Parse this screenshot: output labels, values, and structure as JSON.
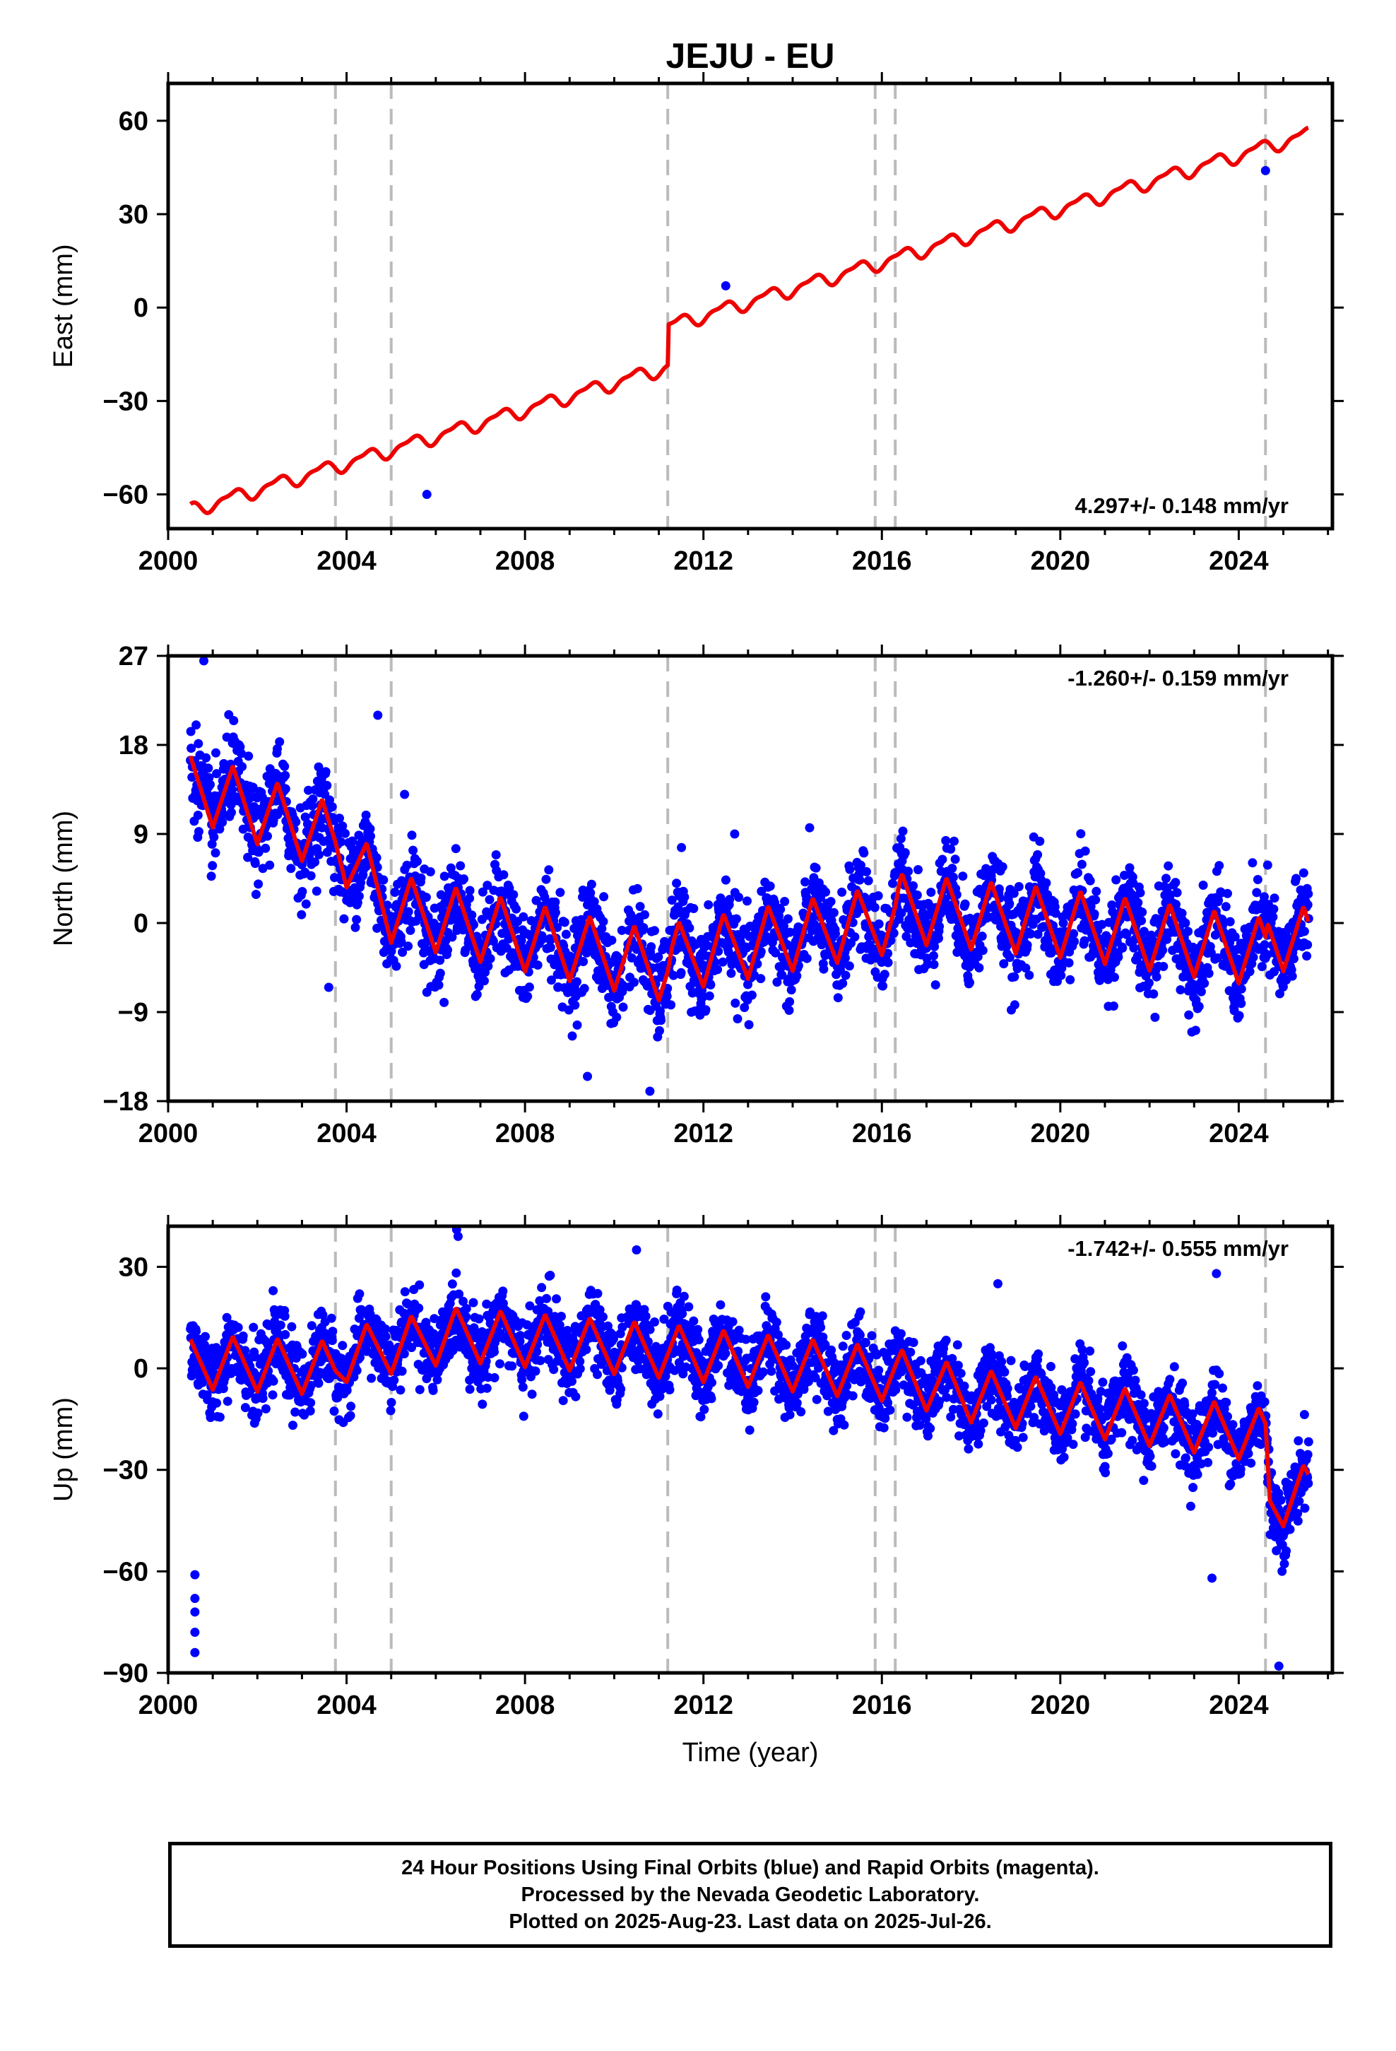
{
  "chart_data": {
    "type": "scatter",
    "title": "JEJU - EU",
    "x_range": [
      2000.0,
      2026.1
    ],
    "x_ticks": [
      2000,
      2004,
      2008,
      2012,
      2016,
      2020,
      2024
    ],
    "xlabel": "Time (year)",
    "event_lines": [
      2003.75,
      2005.0,
      2011.2,
      2015.85,
      2016.3,
      2024.6
    ],
    "colors": {
      "points": "#0000ff",
      "model": "#ee0000",
      "events": "#bbbbbb"
    },
    "panels": [
      {
        "key": "east",
        "ylabel": "East (mm)",
        "ylim": [
          -71,
          72
        ],
        "yticks": [
          -60,
          -30,
          0,
          30,
          60
        ],
        "ytick_labels": [
          "−60",
          "−30",
          "0",
          "30",
          "60"
        ],
        "rate_label": "4.297+/- 0.148 mm/yr",
        "rate_position": "bottom-right",
        "model": {
          "trend_start": -65,
          "slope": 4.297,
          "annual_amp": 2.0,
          "semiannual_amp": 0.8,
          "offsets": [
            {
              "t": 2011.2,
              "dy": 13
            }
          ],
          "scatter_sd": 1.8
        },
        "outliers": [
          [
            2005.8,
            -60
          ],
          [
            2024.6,
            44
          ],
          [
            2012.5,
            7
          ]
        ]
      },
      {
        "key": "north",
        "ylabel": "North (mm)",
        "ylim": [
          -18,
          27
        ],
        "yticks": [
          -18,
          -9,
          0,
          9,
          18,
          27
        ],
        "ytick_labels": [
          "−18",
          "−9",
          "0",
          "9",
          "18",
          "27"
        ],
        "rate_label": "-1.260+/- 0.159 mm/yr",
        "rate_position": "top-right",
        "model_knots": [
          [
            2000.5,
            14
          ],
          [
            2003.75,
            8.5
          ],
          [
            2005.0,
            1.5
          ],
          [
            2011.2,
            -4.5
          ],
          [
            2011.3,
            -3.5
          ],
          [
            2016.3,
            0.5
          ],
          [
            2016.4,
            1.5
          ],
          [
            2020.0,
            0
          ],
          [
            2024.6,
            -3
          ],
          [
            2024.65,
            -1
          ],
          [
            2025.6,
            -2
          ]
        ],
        "annual_amp": 3.5,
        "scatter_sd": 2.3,
        "outliers": [
          [
            2000.8,
            26.5
          ],
          [
            2004.7,
            21
          ],
          [
            2005.3,
            13
          ],
          [
            2003.6,
            -6.5
          ],
          [
            2005.8,
            -7
          ],
          [
            2009.4,
            -15.5
          ],
          [
            2010.8,
            -17
          ],
          [
            2012.7,
            9
          ]
        ]
      },
      {
        "key": "up",
        "ylabel": "Up (mm)",
        "ylim": [
          -90,
          42
        ],
        "yticks": [
          -90,
          -60,
          -30,
          0,
          30
        ],
        "ytick_labels": [
          "−90",
          "−60",
          "−30",
          "0",
          "30"
        ],
        "rate_label": "-1.742+/- 0.555 mm/yr",
        "rate_position": "top-right",
        "model_knots": [
          [
            2000.5,
            2
          ],
          [
            2003.75,
            0
          ],
          [
            2004.0,
            4
          ],
          [
            2006.5,
            10
          ],
          [
            2011.2,
            5
          ],
          [
            2016.3,
            -2
          ],
          [
            2018.0,
            -8
          ],
          [
            2021.0,
            -13
          ],
          [
            2024.6,
            -20
          ],
          [
            2024.7,
            -40
          ],
          [
            2025.6,
            -36
          ]
        ],
        "annual_amp": 8,
        "scatter_sd": 5.5,
        "outliers": [
          [
            2000.6,
            -61
          ],
          [
            2000.6,
            -68
          ],
          [
            2000.6,
            -72
          ],
          [
            2000.6,
            -78
          ],
          [
            2000.6,
            -84
          ],
          [
            2006.5,
            39
          ],
          [
            2010.5,
            35
          ],
          [
            2023.5,
            28
          ],
          [
            2018.6,
            25
          ],
          [
            2023.4,
            -62
          ],
          [
            2024.9,
            -88
          ]
        ]
      }
    ]
  },
  "footer": {
    "line1": "24 Hour Positions Using Final Orbits (blue) and Rapid Orbits (magenta).",
    "line2": "Processed by the Nevada Geodetic Laboratory.",
    "line3": "Plotted on 2025-Aug-23. Last data on 2025-Jul-26."
  }
}
